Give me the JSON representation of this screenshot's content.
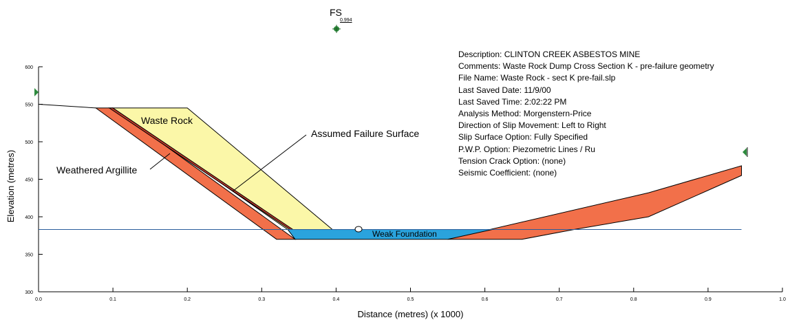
{
  "fs": {
    "label": "FS",
    "value": "0.994"
  },
  "info_lines": [
    "Description: CLINTON CREEK ASBESTOS MINE",
    "Comments: Waste Rock Dump Cross Section K - pre-failure geometry",
    "File Name: Waste Rock - sect K pre-fail.slp",
    "Last Saved Date: 11/9/00",
    "Last Saved Time: 2:02:22 PM",
    "Analysis Method: Morgenstern-Price",
    "Direction of Slip Movement: Left to Right",
    "Slip Surface Option: Fully Specified",
    "P.W.P. Option: Piezometric Lines / Ru",
    "Tension Crack Option: (none)",
    "Seismic Coefficient: (none)"
  ],
  "labels": {
    "waste_rock": "Waste Rock",
    "weathered_argillite": "Weathered Argillite",
    "assumed_failure_surface": "Assumed Failure Surface",
    "weak_foundation": "Weak Foundation"
  },
  "axes": {
    "xlabel": "Distance (metres) (x 1000)",
    "ylabel": "Elevation (metres)",
    "xticks": [
      "0.0",
      "0.1",
      "0.2",
      "0.3",
      "0.4",
      "0.5",
      "0.6",
      "0.7",
      "0.8",
      "0.9",
      "1.0"
    ],
    "yticks": [
      "300",
      "350",
      "400",
      "450",
      "500",
      "550",
      "600"
    ],
    "xlim": [
      0,
      1.0
    ],
    "ylim": [
      300,
      600
    ]
  },
  "colors": {
    "waste_rock": "#fbf7a8",
    "argillite": "#f2704a",
    "foundation": "#2aa3dd",
    "water_line": "#2a5d9b"
  },
  "geometry": {
    "waste_rock": [
      [
        0.1,
        545
      ],
      [
        0.2,
        545
      ],
      [
        0.395,
        383
      ],
      [
        0.335,
        383
      ]
    ],
    "weathered_argillite_left": [
      [
        0.077,
        545
      ],
      [
        0.1,
        545
      ],
      [
        0.345,
        370
      ],
      [
        0.32,
        370
      ]
    ],
    "failure_band": [
      [
        0.095,
        545
      ],
      [
        0.1,
        545
      ],
      [
        0.342,
        383
      ],
      [
        0.338,
        383
      ]
    ],
    "weathered_argillite_right": [
      [
        0.55,
        370
      ],
      [
        0.65,
        370
      ],
      [
        0.72,
        383
      ],
      [
        0.82,
        400
      ],
      [
        0.945,
        455
      ],
      [
        0.945,
        468
      ],
      [
        0.82,
        432
      ]
    ],
    "weak_foundation": [
      [
        0.335,
        383
      ],
      [
        0.61,
        383
      ],
      [
        0.55,
        370
      ],
      [
        0.345,
        370
      ]
    ],
    "ground_surface": [
      [
        0.0,
        550
      ],
      [
        0.077,
        545
      ]
    ],
    "water_table": [
      [
        0.0,
        383
      ],
      [
        0.945,
        383
      ]
    ],
    "fs_center": [
      0.4,
      643
    ]
  }
}
